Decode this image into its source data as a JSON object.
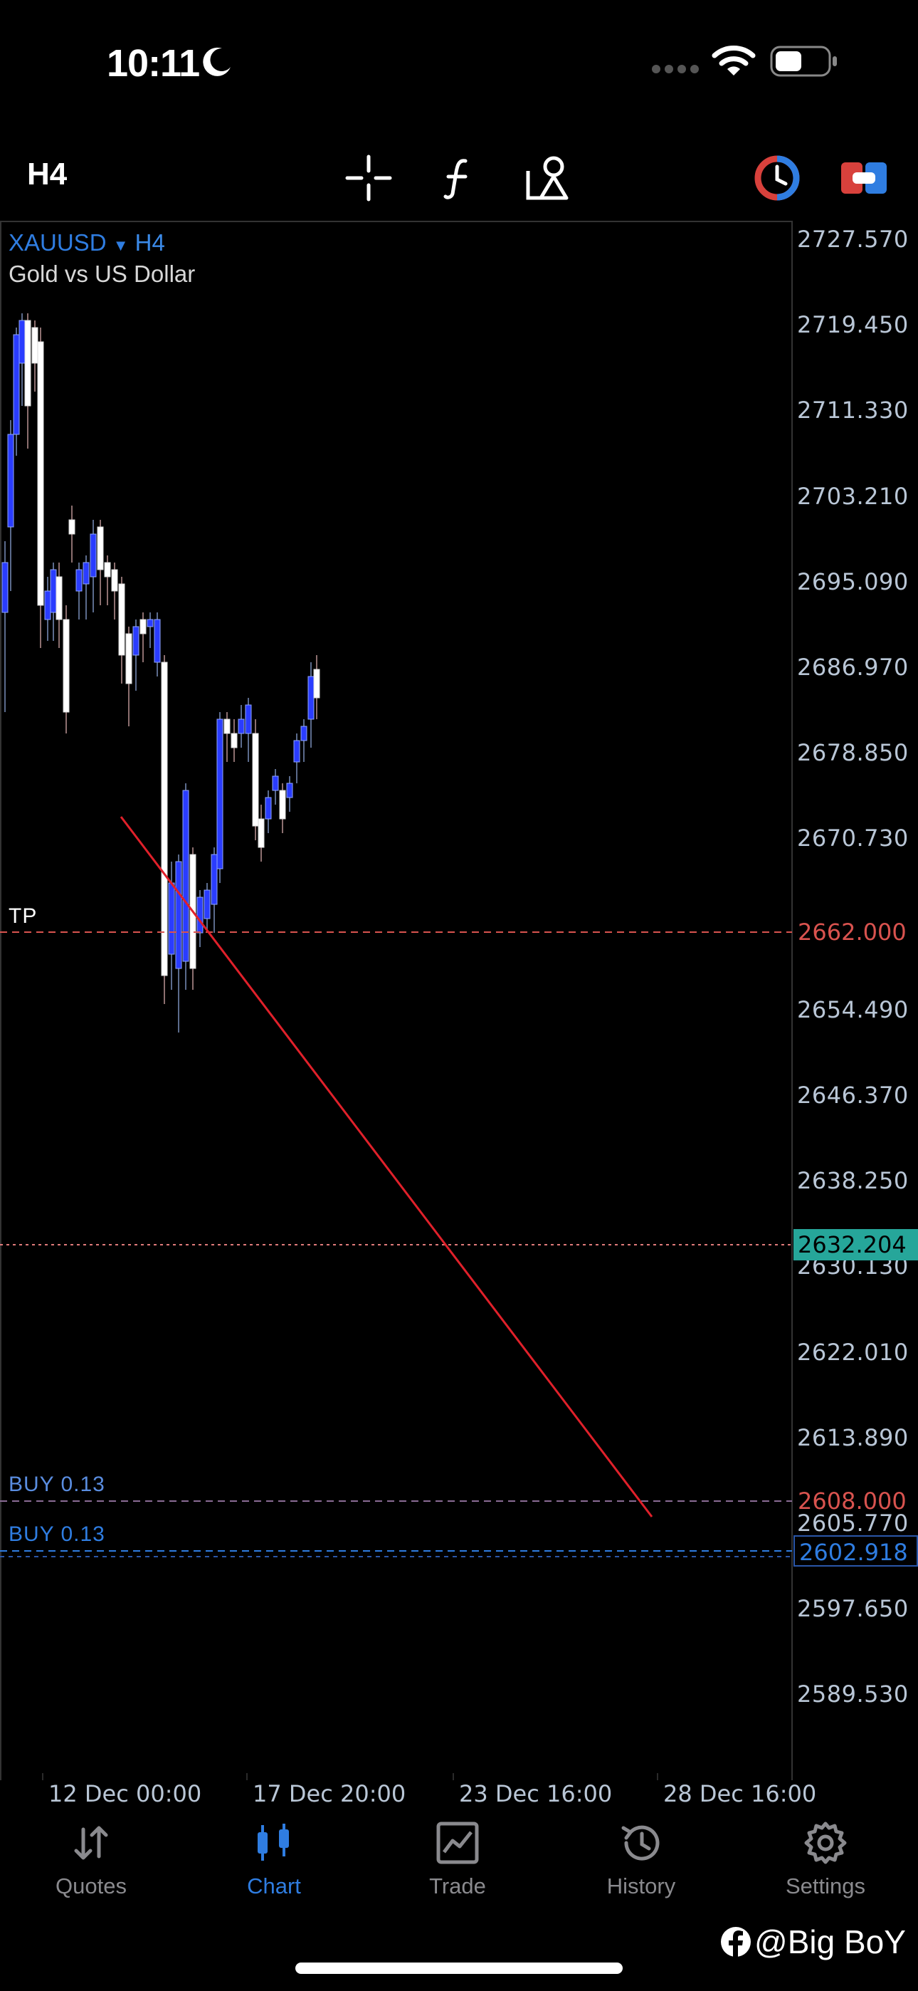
{
  "status_bar": {
    "time": "10:11"
  },
  "toolbar": {
    "timeframe": "H4"
  },
  "chart": {
    "symbol": "XAUUSD",
    "symbol_timeframe": "H4",
    "description": "Gold vs US Dollar",
    "price_axis": [
      "2727.570",
      "2719.450",
      "2711.330",
      "2703.210",
      "2695.090",
      "2686.970",
      "2678.850",
      "2670.730",
      "2654.490",
      "2646.370",
      "2638.250",
      "2630.130",
      "2622.010",
      "2613.890",
      "2605.770",
      "2597.650",
      "2589.530"
    ],
    "time_axis": [
      "12 Dec 00:00",
      "17 Dec 20:00",
      "23 Dec 16:00",
      "28 Dec 16:00"
    ],
    "tp": {
      "label": "TP",
      "price": "2662.000",
      "color": "#d9534f"
    },
    "current": {
      "price": "2632.204",
      "color": "#26a69a"
    },
    "order_sl": {
      "label": "BUY 0.13",
      "price": "2608.000"
    },
    "order_entry": {
      "label": "BUY 0.13",
      "price": "2602.918",
      "color": "#2f7de1"
    },
    "trendline_color": "#e0202a",
    "bull_color": "#2a3cff",
    "bear_color": "#ffffff"
  },
  "tabs": [
    {
      "label": "Quotes",
      "icon": "quotes-icon"
    },
    {
      "label": "Chart",
      "icon": "chart-icon",
      "active": true
    },
    {
      "label": "Trade",
      "icon": "trade-icon"
    },
    {
      "label": "History",
      "icon": "history-icon"
    },
    {
      "label": "Settings",
      "icon": "settings-icon"
    }
  ],
  "watermark": "@Big BoY"
}
